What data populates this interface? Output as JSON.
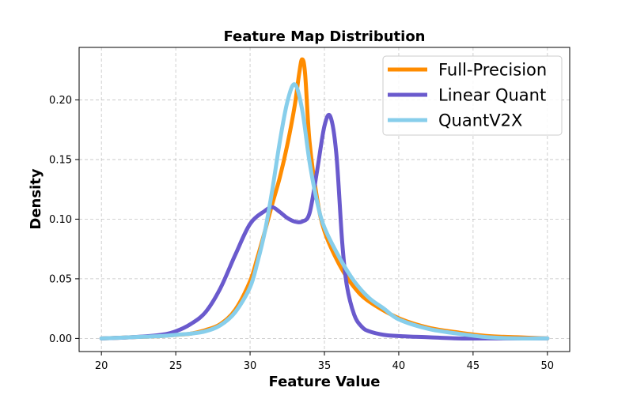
{
  "chart_data": {
    "type": "line",
    "title": "Feature Map Distribution",
    "xlabel": "Feature Value",
    "ylabel": "Density",
    "xlim": [
      18.5,
      51.5
    ],
    "ylim": [
      -0.011,
      0.244
    ],
    "xticks": [
      20,
      25,
      30,
      35,
      40,
      45,
      50
    ],
    "xtick_labels": [
      "20",
      "25",
      "30",
      "35",
      "40",
      "45",
      "50"
    ],
    "yticks": [
      0.0,
      0.05,
      0.1,
      0.15,
      0.2
    ],
    "ytick_labels": [
      "0.00",
      "0.05",
      "0.10",
      "0.15",
      "0.20"
    ],
    "grid": true,
    "legend_position": "top-right",
    "series": [
      {
        "name": "Full-Precision",
        "color": "#ff8c00",
        "x": [
          20,
          22,
          24,
          25,
          26,
          27,
          28,
          29,
          30,
          30.5,
          31,
          31.5,
          32,
          32.5,
          33,
          33.3,
          33.5,
          33.7,
          34,
          34.5,
          35,
          36,
          37,
          38,
          40,
          42,
          44,
          46,
          48,
          50
        ],
        "y": [
          0.0,
          0.001,
          0.002,
          0.003,
          0.004,
          0.007,
          0.012,
          0.024,
          0.048,
          0.068,
          0.09,
          0.113,
          0.135,
          0.162,
          0.195,
          0.222,
          0.234,
          0.222,
          0.165,
          0.118,
          0.09,
          0.062,
          0.043,
          0.031,
          0.017,
          0.009,
          0.005,
          0.002,
          0.001,
          0.0
        ]
      },
      {
        "name": "Linear Quant",
        "color": "#6a5acd",
        "x": [
          20,
          22,
          24,
          25,
          26,
          27,
          28,
          29,
          30,
          31,
          31.5,
          32,
          32.5,
          33,
          33.5,
          34,
          34.5,
          35,
          35.4,
          35.8,
          36.2,
          36.5,
          37,
          37.5,
          38,
          39,
          40,
          42,
          44,
          46,
          50
        ],
        "y": [
          0.0,
          0.001,
          0.003,
          0.006,
          0.012,
          0.022,
          0.042,
          0.07,
          0.096,
          0.107,
          0.11,
          0.106,
          0.101,
          0.098,
          0.098,
          0.105,
          0.14,
          0.178,
          0.186,
          0.155,
          0.08,
          0.045,
          0.02,
          0.01,
          0.006,
          0.003,
          0.002,
          0.001,
          0.0,
          0.0,
          0.0
        ]
      },
      {
        "name": "QuantV2X",
        "color": "#87ceeb",
        "x": [
          20,
          22,
          24,
          25,
          26,
          27,
          28,
          29,
          30,
          30.5,
          31,
          31.5,
          32,
          32.5,
          33,
          33.5,
          34,
          34.5,
          35,
          36,
          37,
          38,
          39,
          40,
          42,
          44,
          46,
          48,
          50
        ],
        "y": [
          0.0,
          0.001,
          0.002,
          0.003,
          0.004,
          0.006,
          0.011,
          0.022,
          0.043,
          0.064,
          0.09,
          0.125,
          0.165,
          0.198,
          0.213,
          0.192,
          0.148,
          0.115,
          0.093,
          0.068,
          0.048,
          0.034,
          0.025,
          0.016,
          0.008,
          0.004,
          0.001,
          0.0,
          0.0
        ]
      }
    ]
  }
}
